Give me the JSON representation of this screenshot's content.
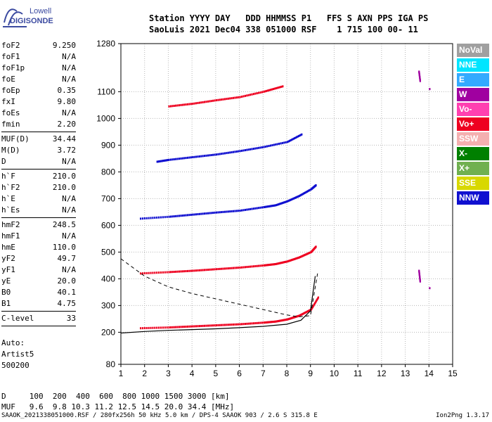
{
  "logo": {
    "line1": "Lowell",
    "line2": "DIGISONDE"
  },
  "header": {
    "line1": "Station YYYY DAY   DDD HHMMSS P1   FFS S AXN PPS IGA PS",
    "line2": "SaoLuis 2021 Dec04 338 051000 RSF    1 715 100 00- 11"
  },
  "params": [
    {
      "k": "foF2",
      "v": "9.250"
    },
    {
      "k": "foF1",
      "v": "N/A"
    },
    {
      "k": "foF1p",
      "v": "N/A"
    },
    {
      "k": "foE",
      "v": "N/A"
    },
    {
      "k": "foEp",
      "v": "0.35"
    },
    {
      "k": "fxI",
      "v": "9.80"
    },
    {
      "k": "foEs",
      "v": "N/A"
    },
    {
      "k": "fmin",
      "v": "2.20"
    },
    {
      "sep": true
    },
    {
      "k": "MUF(D)",
      "v": "34.44"
    },
    {
      "k": "M(D)",
      "v": "3.72"
    },
    {
      "k": "D",
      "v": "N/A"
    },
    {
      "sep": true
    },
    {
      "k": "h`F",
      "v": "210.0"
    },
    {
      "k": "h`F2",
      "v": "210.0"
    },
    {
      "k": "h`E",
      "v": "N/A"
    },
    {
      "k": "h`Es",
      "v": "N/A"
    },
    {
      "sep": true
    },
    {
      "k": "hmF2",
      "v": "248.5"
    },
    {
      "k": "hmF1",
      "v": "N/A"
    },
    {
      "k": "hmE",
      "v": "110.0"
    },
    {
      "k": "yF2",
      "v": "49.7"
    },
    {
      "k": "yF1",
      "v": "N/A"
    },
    {
      "k": "yE",
      "v": "20.0"
    },
    {
      "k": "B0",
      "v": "40.1"
    },
    {
      "k": "B1",
      "v": "4.75"
    },
    {
      "sep": true
    },
    {
      "k": "C-level",
      "v": "33"
    },
    {
      "sep": true
    }
  ],
  "auto": {
    "line1": "Auto:",
    "line2": "Artist5",
    "line3": "500200"
  },
  "legend": [
    {
      "label": "NoVal",
      "color": "#a0a0a0"
    },
    {
      "label": "NNE",
      "color": "#00e5ff"
    },
    {
      "label": "E",
      "color": "#33aaff"
    },
    {
      "label": "W",
      "color": "#a000a0"
    },
    {
      "label": "Vo-",
      "color": "#ff40b0"
    },
    {
      "label": "Vo+",
      "color": "#ee0020"
    },
    {
      "label": "SSW",
      "color": "#f4b0b0"
    },
    {
      "label": "X-",
      "color": "#008000"
    },
    {
      "label": "X+",
      "color": "#70b050"
    },
    {
      "label": "SSE",
      "color": "#d8d800"
    },
    {
      "label": "NNW",
      "color": "#1010d0"
    }
  ],
  "dtable": {
    "line1": "D     100  200  400  600  800 1000 1500 3000 [km]",
    "line2": "MUF   9.6  9.8 10.3 11.2 12.5 14.5 20.0 34.4 [MHz]"
  },
  "footer": "SAAOK_2021338051000.RSF / 280fx256h 50 kHz 5.0 km / DPS-4 SAAOK 903 / 2.6 S 315.8 E",
  "version": "Ion2Png 1.3.17",
  "chart_data": {
    "type": "scatter",
    "xlabel": "",
    "ylabel": "",
    "xlim": [
      1,
      15
    ],
    "ylim": [
      80,
      1280
    ],
    "x_ticks": [
      1,
      2,
      3,
      4,
      5,
      6,
      7,
      8,
      9,
      10,
      11,
      12,
      13,
      14,
      15
    ],
    "y_ticks": [
      80,
      200,
      300,
      400,
      500,
      600,
      700,
      800,
      900,
      1000,
      1100,
      1280
    ],
    "grid": true,
    "legend_position": "right",
    "traces": [
      {
        "color": "Vo+",
        "x": [
          1.8,
          3,
          4,
          5,
          6,
          7,
          7.5,
          8,
          8.5,
          9,
          9.3
        ],
        "y": [
          215,
          218,
          222,
          226,
          230,
          236,
          240,
          248,
          262,
          285,
          330
        ]
      },
      {
        "color": "Vo+",
        "x": [
          1.8,
          3,
          4,
          5,
          6,
          7,
          7.5,
          8,
          8.5,
          9,
          9.2
        ],
        "y": [
          420,
          425,
          430,
          436,
          442,
          450,
          455,
          465,
          480,
          500,
          520
        ]
      },
      {
        "color": "NNW",
        "x": [
          1.8,
          3,
          4,
          5,
          6,
          7,
          7.5,
          8,
          8.5,
          9,
          9.2
        ],
        "y": [
          625,
          632,
          640,
          648,
          655,
          668,
          675,
          690,
          710,
          735,
          750
        ]
      },
      {
        "color": "NNW",
        "x": [
          2.5,
          3,
          4,
          5,
          6,
          7,
          8,
          8.6
        ],
        "y": [
          838,
          845,
          855,
          865,
          878,
          893,
          912,
          940
        ]
      },
      {
        "color": "Vo+",
        "x": [
          3,
          4,
          5,
          6,
          7,
          7.8
        ],
        "y": [
          1045,
          1055,
          1068,
          1080,
          1100,
          1120
        ]
      },
      {
        "color": "W",
        "x": [
          13.55,
          13.6
        ],
        "y": [
          1175,
          1140
        ]
      },
      {
        "color": "W",
        "x": [
          14.0
        ],
        "y": [
          1110
        ]
      },
      {
        "color": "W",
        "x": [
          13.55,
          13.6
        ],
        "y": [
          430,
          390
        ]
      },
      {
        "color": "W",
        "x": [
          14.0
        ],
        "y": [
          365
        ]
      }
    ],
    "profile_curve": {
      "x": [
        1,
        2,
        3,
        4,
        5,
        6,
        7,
        8,
        8.6,
        9,
        9.2
      ],
      "y": [
        197,
        203,
        207,
        210,
        213,
        217,
        222,
        230,
        245,
        280,
        410
      ]
    },
    "dashed_curve": {
      "x": [
        1,
        2,
        3,
        4,
        5,
        6,
        7,
        8,
        8.5,
        9,
        9.3
      ],
      "y": [
        475,
        410,
        370,
        345,
        325,
        305,
        285,
        265,
        258,
        262,
        420
      ]
    }
  }
}
